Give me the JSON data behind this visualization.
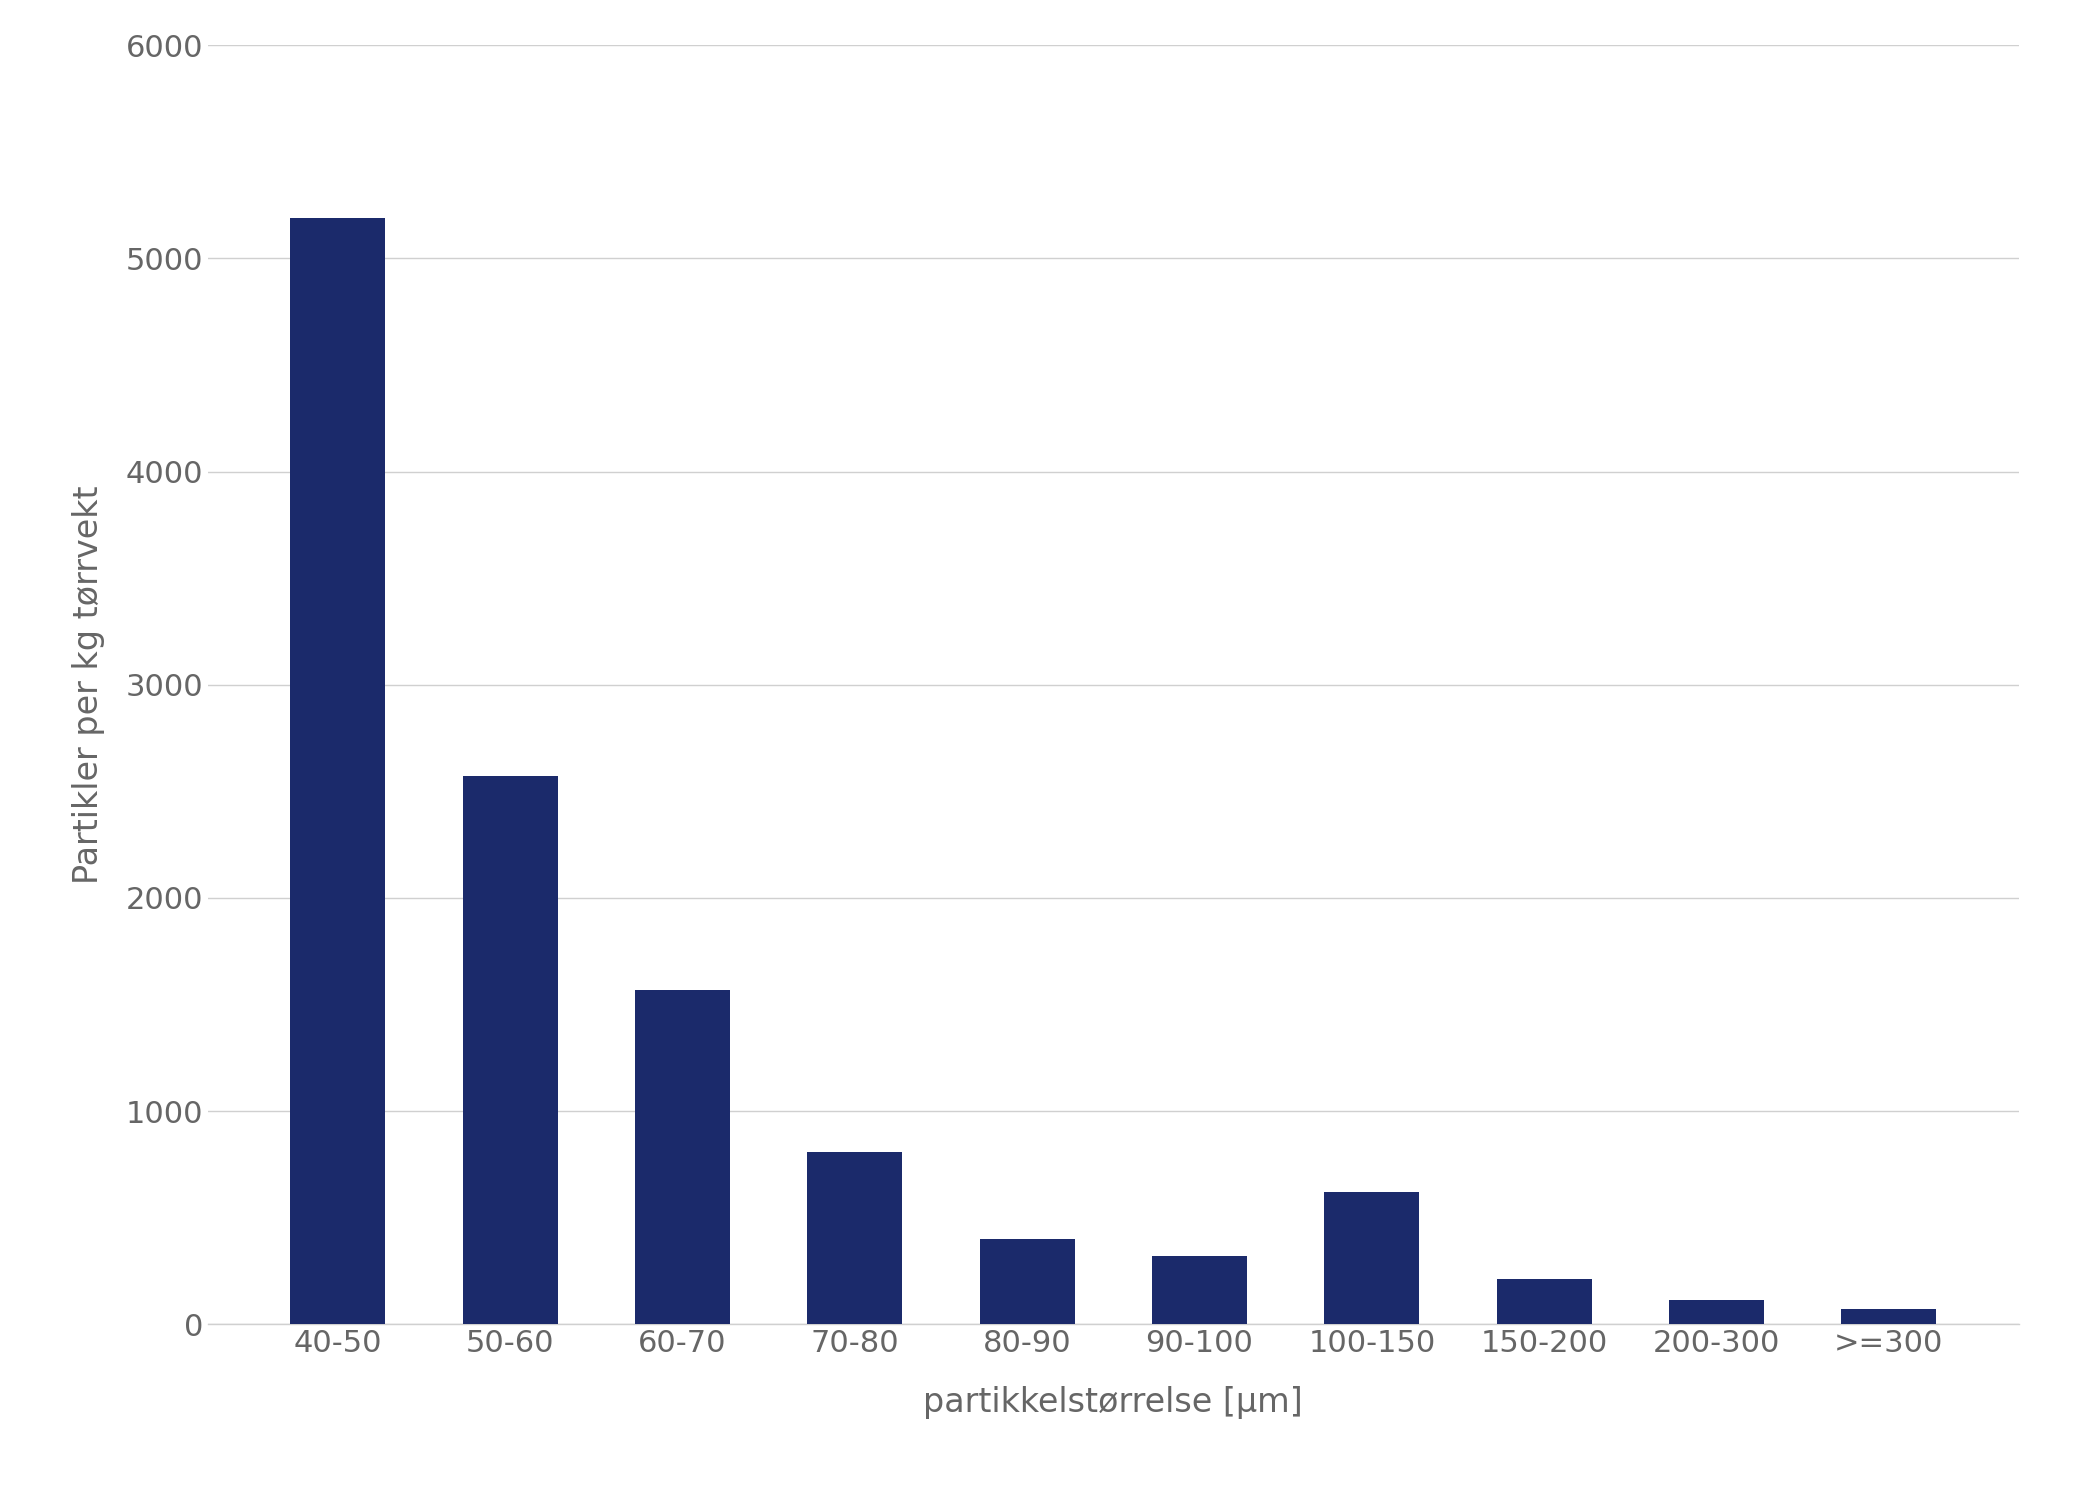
{
  "categories": [
    "40-50",
    "50-60",
    "60-70",
    "70-80",
    "80-90",
    "90-100",
    "100-150",
    "150-200",
    "200-300",
    ">=300"
  ],
  "values": [
    5190,
    2570,
    1570,
    810,
    400,
    320,
    620,
    215,
    115,
    70
  ],
  "bar_color": "#1b2a6b",
  "ylabel": "Partikler per kg tørrvekt",
  "xlabel": "partikkelstørrelse [µm]",
  "ylim": [
    0,
    6000
  ],
  "yticks": [
    0,
    1000,
    2000,
    3000,
    4000,
    5000,
    6000
  ],
  "background_color": "#ffffff",
  "plot_bg_color": "#ffffff",
  "grid_color": "#d0d0d0",
  "text_color": "#666666",
  "ylabel_fontsize": 24,
  "xlabel_fontsize": 24,
  "tick_fontsize": 22,
  "bar_width": 0.55
}
